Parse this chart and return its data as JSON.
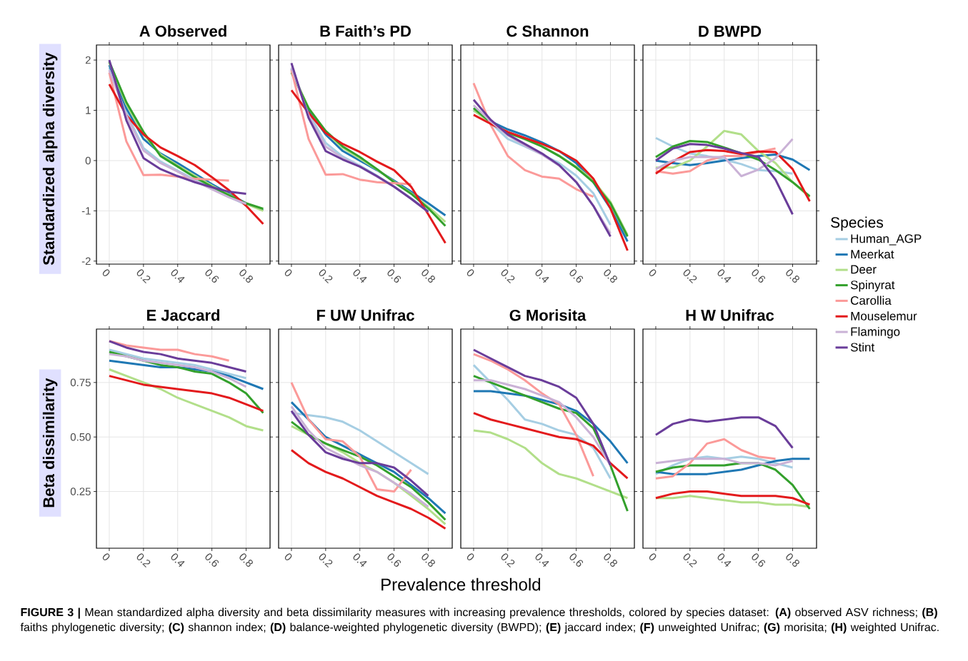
{
  "chart_data": [
    {
      "type": "line",
      "title": "A Observed",
      "ylabel": "Standardized alpha diversity",
      "annotations": [
        "**FIGURE 3 |** Mean standardized alpha diversity and beta dissimilarity measures with increasing prevalence thresholds, colored by species dataset: **(A)** observed ASV richness; **(B)** faiths phylogenetic diversity; **(C)** shannon index; **(D)** balance-weighted phylogenetic diversity (BWPD); **(E)** jaccard index; **(F)** unweighted Unifrac; **(G)** morisita; **(H)** weighted Unifrac."
      ],
      "x": [
        0,
        0.1,
        0.2,
        0.3,
        0.4,
        0.5,
        0.6,
        0.7,
        0.8,
        0.9
      ],
      "xlim": [
        -0.075,
        0.94
      ],
      "ylim": [
        -2.06,
        2.3
      ],
      "xticks": [
        0,
        0.2,
        0.4,
        0.6,
        0.8
      ],
      "yticks": [
        -2,
        -1,
        0,
        1,
        2
      ],
      "grid": true,
      "series": [
        {
          "color": "#a6cee3",
          "values": [
            1.85,
            0.95,
            0.25,
            -0.02,
            -0.2,
            -0.38,
            -0.56,
            -0.72,
            -0.88,
            null
          ]
        },
        {
          "color": "#1f78b4",
          "values": [
            1.9,
            1.04,
            0.43,
            0.14,
            -0.05,
            -0.26,
            -0.47,
            -0.66,
            -0.85,
            -0.99
          ]
        },
        {
          "color": "#b2df8a",
          "values": [
            1.95,
            1.12,
            0.52,
            0.12,
            -0.1,
            -0.3,
            -0.5,
            -0.68,
            -0.86,
            -1.0
          ]
        },
        {
          "color": "#33a02c",
          "values": [
            1.97,
            1.16,
            0.57,
            0.09,
            -0.12,
            -0.33,
            -0.52,
            -0.69,
            -0.85,
            -0.96
          ]
        },
        {
          "color": "#fb9a99",
          "values": [
            1.75,
            0.38,
            -0.29,
            -0.28,
            -0.32,
            -0.36,
            -0.38,
            -0.4,
            null,
            null
          ]
        },
        {
          "color": "#e31a1c",
          "values": [
            1.52,
            0.9,
            0.52,
            0.26,
            0.09,
            -0.09,
            -0.33,
            -0.59,
            -0.9,
            -1.26
          ]
        },
        {
          "color": "#cab2d6",
          "values": [
            1.8,
            0.9,
            0.2,
            -0.05,
            -0.22,
            -0.4,
            -0.57,
            -0.73,
            -0.86,
            null
          ]
        },
        {
          "color": "#6a3d9a",
          "values": [
            2.0,
            0.8,
            0.05,
            -0.17,
            -0.31,
            -0.43,
            -0.53,
            -0.62,
            -0.66,
            null
          ]
        }
      ]
    },
    {
      "type": "line",
      "title": "B Faith’s PD",
      "x": [
        0,
        0.1,
        0.2,
        0.3,
        0.4,
        0.5,
        0.6,
        0.7,
        0.8,
        0.9
      ],
      "xlim": [
        -0.075,
        0.94
      ],
      "ylim": [
        -2.06,
        2.3
      ],
      "xticks": [
        0,
        0.2,
        0.4,
        0.6,
        0.8
      ],
      "yticks": [
        -2,
        -1,
        0,
        1,
        2
      ],
      "grid": true,
      "tick_labels": "x",
      "series": [
        {
          "color": "#a6cee3",
          "values": [
            1.85,
            0.95,
            0.35,
            0.08,
            -0.1,
            -0.3,
            -0.52,
            -0.75,
            -1.0,
            null
          ]
        },
        {
          "color": "#1f78b4",
          "values": [
            1.82,
            1.0,
            0.52,
            0.19,
            0,
            -0.19,
            -0.4,
            -0.62,
            -0.85,
            -1.09
          ]
        },
        {
          "color": "#b2df8a",
          "values": [
            1.78,
            1.05,
            0.57,
            0.25,
            0.04,
            -0.18,
            -0.42,
            -0.65,
            -0.92,
            -1.22
          ]
        },
        {
          "color": "#33a02c",
          "values": [
            1.75,
            1.04,
            0.59,
            0.28,
            0.07,
            -0.17,
            -0.43,
            -0.66,
            -0.95,
            -1.3
          ]
        },
        {
          "color": "#fb9a99",
          "values": [
            1.8,
            0.43,
            -0.28,
            -0.27,
            -0.38,
            -0.43,
            -0.45,
            -0.47,
            null,
            null
          ]
        },
        {
          "color": "#e31a1c",
          "values": [
            1.4,
            0.95,
            0.55,
            0.33,
            0.17,
            -0.02,
            -0.19,
            -0.52,
            -1.07,
            -1.64
          ]
        },
        {
          "color": "#cab2d6",
          "values": [
            1.85,
            0.9,
            0.28,
            0.05,
            -0.12,
            -0.32,
            -0.52,
            -0.76,
            -1.02,
            null
          ]
        },
        {
          "color": "#6a3d9a",
          "values": [
            1.94,
            0.85,
            0.19,
            0.02,
            -0.12,
            -0.31,
            -0.52,
            -0.76,
            -1.02,
            null
          ]
        }
      ]
    },
    {
      "type": "line",
      "title": "C Shannon",
      "x": [
        0,
        0.1,
        0.2,
        0.3,
        0.4,
        0.5,
        0.6,
        0.7,
        0.8,
        0.9
      ],
      "xlim": [
        -0.075,
        0.94
      ],
      "ylim": [
        -2.06,
        2.3
      ],
      "xticks": [
        0,
        0.2,
        0.4,
        0.6,
        0.8
      ],
      "yticks": [
        -2,
        -1,
        0,
        1,
        2
      ],
      "grid": true,
      "tick_labels": "x",
      "series": [
        {
          "color": "#a6cee3",
          "values": [
            1.05,
            0.75,
            0.43,
            0.28,
            0.12,
            -0.05,
            -0.3,
            -0.65,
            -1.28,
            null
          ]
        },
        {
          "color": "#1f78b4",
          "values": [
            1.0,
            0.78,
            0.62,
            0.5,
            0.36,
            0.19,
            -0.05,
            -0.43,
            -0.95,
            -1.61
          ]
        },
        {
          "color": "#b2df8a",
          "values": [
            1.0,
            0.75,
            0.55,
            0.42,
            0.28,
            0.1,
            -0.12,
            -0.4,
            -0.82,
            -1.48
          ]
        },
        {
          "color": "#33a02c",
          "values": [
            1.04,
            0.76,
            0.55,
            0.43,
            0.28,
            0.09,
            -0.14,
            -0.43,
            -0.85,
            -1.51
          ]
        },
        {
          "color": "#fb9a99",
          "values": [
            1.54,
            0.71,
            0.09,
            -0.19,
            -0.32,
            -0.36,
            -0.57,
            -0.72,
            null,
            null
          ]
        },
        {
          "color": "#e31a1c",
          "values": [
            0.91,
            0.73,
            0.57,
            0.45,
            0.33,
            0.19,
            0,
            -0.36,
            -0.95,
            -1.79
          ]
        },
        {
          "color": "#cab2d6",
          "values": [
            1.1,
            0.78,
            0.5,
            0.3,
            0.12,
            -0.1,
            -0.42,
            -0.9,
            -1.45,
            null
          ]
        },
        {
          "color": "#6a3d9a",
          "values": [
            1.21,
            0.81,
            0.52,
            0.33,
            0.14,
            -0.09,
            -0.43,
            -0.9,
            -1.51,
            null
          ]
        }
      ]
    },
    {
      "type": "line",
      "title": "D BWPD",
      "legend": "right",
      "legend_title": "Species",
      "x": [
        0,
        0.1,
        0.2,
        0.3,
        0.4,
        0.5,
        0.6,
        0.7,
        0.8,
        0.9
      ],
      "xlim": [
        -0.075,
        0.94
      ],
      "ylim": [
        -2.06,
        2.3
      ],
      "xticks": [
        0,
        0.2,
        0.4,
        0.6,
        0.8
      ],
      "yticks": [
        -2,
        -1,
        0,
        1,
        2
      ],
      "grid": true,
      "tick_labels": "x",
      "series": [
        {
          "name": "Human_AGP",
          "color": "#a6cee3",
          "values": [
            0.45,
            0.28,
            0.14,
            0.09,
            0.02,
            -0.07,
            -0.19,
            -0.21,
            -0.26,
            null
          ]
        },
        {
          "name": "Meerkat",
          "color": "#1f78b4",
          "values": [
            0,
            -0.05,
            -0.09,
            -0.05,
            0,
            0.05,
            0.09,
            0.12,
            0.02,
            -0.19
          ]
        },
        {
          "name": "Deer",
          "color": "#b2df8a",
          "values": [
            -0.14,
            -0.14,
            0,
            0.28,
            0.59,
            0.52,
            0.19,
            -0.05,
            -0.43,
            -0.73
          ]
        },
        {
          "name": "Spinyrat",
          "color": "#33a02c",
          "values": [
            0.07,
            0.28,
            0.39,
            0.37,
            0.26,
            0.14,
            0.02,
            -0.19,
            -0.43,
            -0.71
          ]
        },
        {
          "name": "Carollia",
          "color": "#fb9a99",
          "values": [
            -0.21,
            -0.26,
            -0.21,
            0,
            0.09,
            0.09,
            0.17,
            0.24,
            null,
            null
          ]
        },
        {
          "name": "Mouselemur",
          "color": "#e31a1c",
          "values": [
            -0.26,
            -0.02,
            0.17,
            0.21,
            0.19,
            0.13,
            0.18,
            0.17,
            -0.17,
            -0.81
          ]
        },
        {
          "name": "Flamingo",
          "color": "#cab2d6",
          "values": [
            -0.17,
            0,
            0.07,
            0.07,
            0.07,
            -0.31,
            -0.18,
            0.05,
            0.43,
            null
          ]
        },
        {
          "name": "Stint",
          "color": "#6a3d9a",
          "values": [
            0,
            0.24,
            0.33,
            0.31,
            0.24,
            0.15,
            0.07,
            -0.38,
            -1.07,
            null
          ]
        }
      ]
    },
    {
      "type": "line",
      "title": "E Jaccard",
      "ylabel": "Beta dissimilarity",
      "x": [
        0,
        0.1,
        0.2,
        0.3,
        0.4,
        0.5,
        0.6,
        0.7,
        0.8,
        0.9
      ],
      "xlim": [
        -0.075,
        0.94
      ],
      "ylim": [
        -0.01,
        0.995
      ],
      "xticks": [
        0,
        0.2,
        0.4,
        0.6,
        0.8
      ],
      "yticks": [
        {
          "value": 0.25,
          "label": "0.25"
        },
        {
          "value": 0.5,
          "label": "0.50"
        },
        {
          "value": 0.75,
          "label": "0.75"
        }
      ],
      "grid": true,
      "series": [
        {
          "color": "#a6cee3",
          "values": [
            0.9,
            0.88,
            0.86,
            0.85,
            0.84,
            0.83,
            0.81,
            0.79,
            0.77,
            null
          ]
        },
        {
          "color": "#1f78b4",
          "values": [
            0.85,
            0.84,
            0.83,
            0.82,
            0.82,
            0.81,
            0.8,
            0.78,
            0.75,
            0.72
          ]
        },
        {
          "color": "#b2df8a",
          "values": [
            0.81,
            0.78,
            0.75,
            0.72,
            0.68,
            0.65,
            0.62,
            0.59,
            0.55,
            0.53
          ]
        },
        {
          "color": "#33a02c",
          "values": [
            0.89,
            0.87,
            0.85,
            0.83,
            0.82,
            0.8,
            0.79,
            0.75,
            0.7,
            0.61
          ]
        },
        {
          "color": "#fb9a99",
          "values": [
            0.94,
            0.92,
            0.91,
            0.9,
            0.9,
            0.88,
            0.87,
            0.85,
            null,
            null
          ]
        },
        {
          "color": "#e31a1c",
          "values": [
            0.78,
            0.76,
            0.74,
            0.73,
            0.72,
            0.71,
            0.7,
            0.68,
            0.65,
            0.62
          ]
        },
        {
          "color": "#cab2d6",
          "values": [
            0.88,
            0.87,
            0.85,
            0.84,
            0.83,
            0.82,
            0.8,
            0.77,
            0.73,
            null
          ]
        },
        {
          "color": "#6a3d9a",
          "values": [
            0.94,
            0.91,
            0.89,
            0.88,
            0.86,
            0.85,
            0.84,
            0.82,
            0.8,
            null
          ]
        }
      ]
    },
    {
      "type": "line",
      "title": "F UW Unifrac",
      "xlabel": "Prevalence threshold",
      "x": [
        0,
        0.1,
        0.2,
        0.3,
        0.4,
        0.5,
        0.6,
        0.7,
        0.8,
        0.9
      ],
      "xlim": [
        -0.075,
        0.94
      ],
      "ylim": [
        -0.01,
        0.995
      ],
      "xticks": [
        0,
        0.2,
        0.4,
        0.6,
        0.8
      ],
      "yticks": [
        0.25,
        0.5,
        0.75
      ],
      "grid": true,
      "tick_labels": "x",
      "series": [
        {
          "color": "#a6cee3",
          "values": [
            0.61,
            0.6,
            0.59,
            0.57,
            0.53,
            0.48,
            0.43,
            0.38,
            0.33,
            null
          ]
        },
        {
          "color": "#1f78b4",
          "values": [
            0.66,
            0.58,
            0.5,
            0.46,
            0.42,
            0.38,
            0.34,
            0.28,
            0.22,
            0.15
          ]
        },
        {
          "color": "#b2df8a",
          "values": [
            0.55,
            0.51,
            0.47,
            0.43,
            0.38,
            0.34,
            0.29,
            0.23,
            0.17,
            0.1
          ]
        },
        {
          "color": "#33a02c",
          "values": [
            0.57,
            0.51,
            0.47,
            0.44,
            0.41,
            0.37,
            0.32,
            0.27,
            0.2,
            0.12
          ]
        },
        {
          "color": "#fb9a99",
          "values": [
            0.75,
            0.58,
            0.49,
            0.48,
            0.41,
            0.26,
            0.25,
            0.35,
            null,
            null
          ]
        },
        {
          "color": "#e31a1c",
          "values": [
            0.44,
            0.38,
            0.34,
            0.31,
            0.27,
            0.23,
            0.2,
            0.17,
            0.13,
            0.08
          ]
        },
        {
          "color": "#cab2d6",
          "values": [
            0.64,
            0.53,
            0.45,
            0.41,
            0.37,
            0.34,
            0.29,
            0.24,
            0.18,
            null
          ]
        },
        {
          "color": "#6a3d9a",
          "values": [
            0.62,
            0.51,
            0.43,
            0.4,
            0.38,
            0.38,
            0.36,
            0.3,
            0.23,
            null
          ]
        }
      ]
    },
    {
      "type": "line",
      "title": "G Morisita",
      "x": [
        0,
        0.1,
        0.2,
        0.3,
        0.4,
        0.5,
        0.6,
        0.7,
        0.8,
        0.9
      ],
      "xlim": [
        -0.075,
        0.94
      ],
      "ylim": [
        -0.01,
        0.995
      ],
      "xticks": [
        0,
        0.2,
        0.4,
        0.6,
        0.8
      ],
      "yticks": [
        0.25,
        0.5,
        0.75
      ],
      "grid": true,
      "tick_labels": "x",
      "series": [
        {
          "color": "#a6cee3",
          "values": [
            0.83,
            0.75,
            0.67,
            0.58,
            0.56,
            0.53,
            0.51,
            0.45,
            0.31,
            null
          ]
        },
        {
          "color": "#1f78b4",
          "values": [
            0.71,
            0.71,
            0.7,
            0.69,
            0.67,
            0.65,
            0.62,
            0.56,
            0.48,
            0.38
          ]
        },
        {
          "color": "#b2df8a",
          "values": [
            0.53,
            0.52,
            0.49,
            0.45,
            0.38,
            0.33,
            0.31,
            0.28,
            0.25,
            0.22
          ]
        },
        {
          "color": "#33a02c",
          "values": [
            0.78,
            0.75,
            0.72,
            0.69,
            0.66,
            0.63,
            0.61,
            0.54,
            0.37,
            0.16
          ]
        },
        {
          "color": "#fb9a99",
          "values": [
            0.88,
            0.85,
            0.81,
            0.76,
            0.7,
            0.65,
            0.51,
            0.32,
            null,
            null
          ]
        },
        {
          "color": "#e31a1c",
          "values": [
            0.61,
            0.58,
            0.56,
            0.54,
            0.52,
            0.5,
            0.49,
            0.46,
            0.38,
            0.31
          ]
        },
        {
          "color": "#cab2d6",
          "values": [
            0.76,
            0.76,
            0.74,
            0.72,
            0.69,
            0.66,
            0.59,
            0.5,
            0.37,
            null
          ]
        },
        {
          "color": "#6a3d9a",
          "values": [
            0.9,
            0.86,
            0.82,
            0.78,
            0.76,
            0.73,
            0.68,
            0.56,
            0.37,
            null
          ]
        }
      ]
    },
    {
      "type": "line",
      "title": "H W Unifrac",
      "x": [
        0,
        0.1,
        0.2,
        0.3,
        0.4,
        0.5,
        0.6,
        0.7,
        0.8,
        0.9
      ],
      "xlim": [
        -0.075,
        0.94
      ],
      "ylim": [
        -0.01,
        0.995
      ],
      "xticks": [
        0,
        0.2,
        0.4,
        0.6,
        0.8
      ],
      "yticks": [
        0.25,
        0.5,
        0.75
      ],
      "grid": true,
      "tick_labels": "x",
      "series": [
        {
          "color": "#a6cee3",
          "values": [
            0.33,
            0.37,
            0.4,
            0.41,
            0.4,
            0.41,
            0.4,
            0.38,
            0.36,
            null
          ]
        },
        {
          "color": "#1f78b4",
          "values": [
            0.34,
            0.33,
            0.33,
            0.33,
            0.34,
            0.35,
            0.37,
            0.39,
            0.4,
            0.4
          ]
        },
        {
          "color": "#b2df8a",
          "values": [
            0.22,
            0.22,
            0.23,
            0.22,
            0.21,
            0.2,
            0.2,
            0.19,
            0.19,
            0.18
          ]
        },
        {
          "color": "#33a02c",
          "values": [
            0.34,
            0.36,
            0.37,
            0.37,
            0.37,
            0.38,
            0.38,
            0.35,
            0.28,
            0.17
          ]
        },
        {
          "color": "#fb9a99",
          "values": [
            0.31,
            0.32,
            0.38,
            0.47,
            0.49,
            0.44,
            0.41,
            0.4,
            null,
            null
          ]
        },
        {
          "color": "#e31a1c",
          "values": [
            0.22,
            0.24,
            0.25,
            0.25,
            0.24,
            0.23,
            0.23,
            0.23,
            0.22,
            0.19
          ]
        },
        {
          "color": "#cab2d6",
          "values": [
            0.38,
            0.39,
            0.4,
            0.4,
            0.4,
            0.38,
            0.38,
            0.37,
            0.39,
            null
          ]
        },
        {
          "color": "#6a3d9a",
          "values": [
            0.51,
            0.56,
            0.58,
            0.57,
            0.58,
            0.59,
            0.59,
            0.55,
            0.45,
            null
          ]
        }
      ]
    }
  ]
}
